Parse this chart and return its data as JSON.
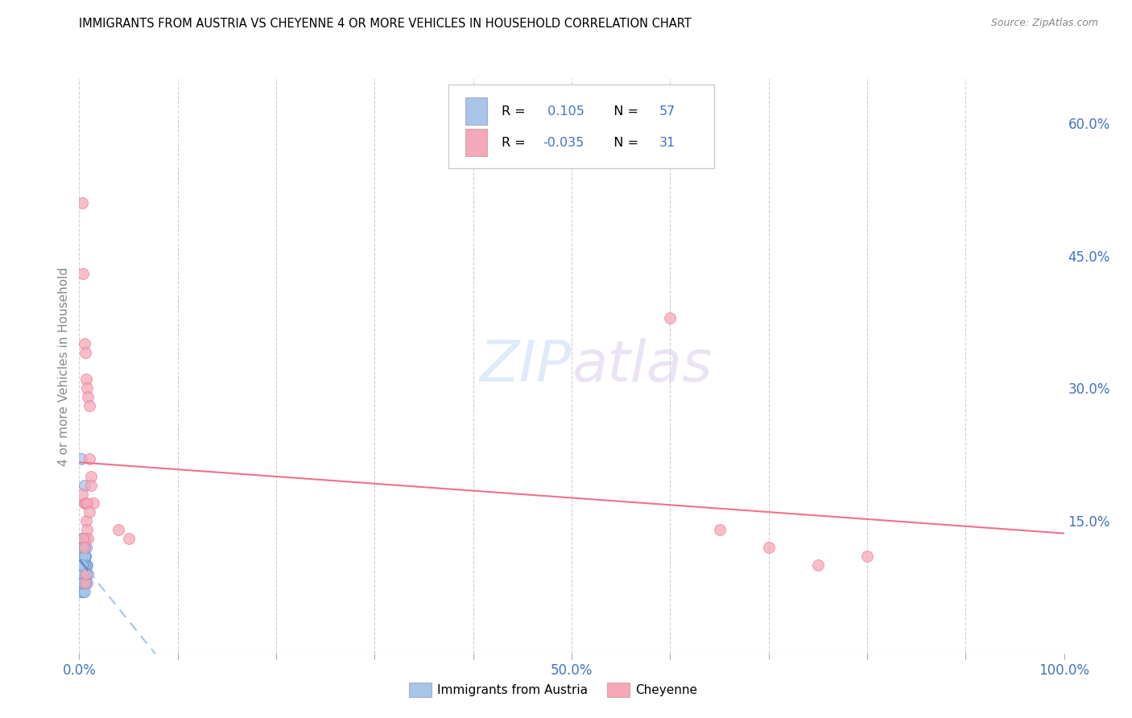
{
  "title": "IMMIGRANTS FROM AUSTRIA VS CHEYENNE 4 OR MORE VEHICLES IN HOUSEHOLD CORRELATION CHART",
  "source": "Source: ZipAtlas.com",
  "ylabel": "4 or more Vehicles in Household",
  "xlim": [
    0.0,
    1.0
  ],
  "ylim": [
    0.0,
    0.65
  ],
  "xtick_pos": [
    0.0,
    0.1,
    0.2,
    0.3,
    0.4,
    0.5,
    0.6,
    0.7,
    0.8,
    0.9,
    1.0
  ],
  "xticklabels": [
    "0.0%",
    "",
    "",
    "",
    "",
    "50.0%",
    "",
    "",
    "",
    "",
    "100.0%"
  ],
  "yticks_right": [
    0.15,
    0.3,
    0.45,
    0.6
  ],
  "yticklabels_right": [
    "15.0%",
    "30.0%",
    "45.0%",
    "60.0%"
  ],
  "blue_color": "#a8c4e8",
  "pink_color": "#f4a8b8",
  "trend_blue_solid": "#5b8fd4",
  "trend_blue_dashed": "#a8c4e8",
  "trend_pink_solid": "#f07090",
  "grid_color": "#d0d0d0",
  "text_color": "#4472c4",
  "austria_x": [
    0.001,
    0.002,
    0.002,
    0.003,
    0.003,
    0.003,
    0.004,
    0.004,
    0.004,
    0.004,
    0.005,
    0.005,
    0.005,
    0.005,
    0.006,
    0.006,
    0.006,
    0.007,
    0.007,
    0.007,
    0.008,
    0.008,
    0.009,
    0.001,
    0.002,
    0.003,
    0.003,
    0.004,
    0.004,
    0.005,
    0.005,
    0.006,
    0.006,
    0.007,
    0.002,
    0.003,
    0.004,
    0.005,
    0.003,
    0.002,
    0.004,
    0.003,
    0.005,
    0.006,
    0.004,
    0.007,
    0.003,
    0.005,
    0.004,
    0.006,
    0.002,
    0.005,
    0.003,
    0.004,
    0.003,
    0.005,
    0.004
  ],
  "austria_y": [
    0.12,
    0.1,
    0.22,
    0.09,
    0.11,
    0.13,
    0.08,
    0.1,
    0.11,
    0.13,
    0.08,
    0.1,
    0.12,
    0.19,
    0.09,
    0.11,
    0.13,
    0.1,
    0.12,
    0.09,
    0.08,
    0.1,
    0.09,
    0.07,
    0.08,
    0.1,
    0.12,
    0.09,
    0.11,
    0.08,
    0.1,
    0.09,
    0.11,
    0.1,
    0.09,
    0.08,
    0.07,
    0.09,
    0.1,
    0.11,
    0.08,
    0.09,
    0.1,
    0.08,
    0.12,
    0.09,
    0.07,
    0.08,
    0.1,
    0.09,
    0.1,
    0.11,
    0.08,
    0.09,
    0.1,
    0.07,
    0.08
  ],
  "cheyenne_x": [
    0.003,
    0.004,
    0.005,
    0.006,
    0.007,
    0.008,
    0.009,
    0.01,
    0.01,
    0.012,
    0.012,
    0.014,
    0.005,
    0.006,
    0.007,
    0.008,
    0.009,
    0.04,
    0.05,
    0.6,
    0.65,
    0.7,
    0.75,
    0.8,
    0.003,
    0.004,
    0.005,
    0.006,
    0.007,
    0.008,
    0.01
  ],
  "cheyenne_y": [
    0.51,
    0.43,
    0.35,
    0.34,
    0.31,
    0.3,
    0.29,
    0.28,
    0.22,
    0.2,
    0.19,
    0.17,
    0.17,
    0.17,
    0.15,
    0.14,
    0.13,
    0.14,
    0.13,
    0.38,
    0.14,
    0.12,
    0.1,
    0.11,
    0.18,
    0.13,
    0.12,
    0.08,
    0.09,
    0.17,
    0.16
  ]
}
